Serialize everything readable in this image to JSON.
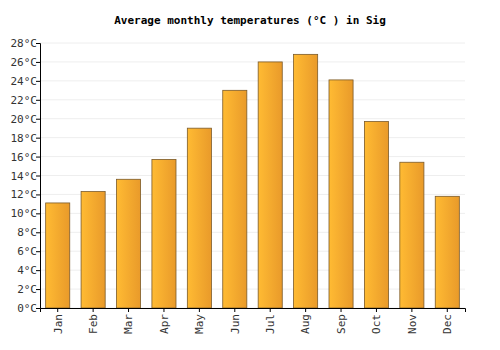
{
  "chart_data": {
    "type": "bar",
    "title": "Average monthly temperatures (°C ) in Sig",
    "categories": [
      "Jan",
      "Feb",
      "Mar",
      "Apr",
      "May",
      "Jun",
      "Jul",
      "Aug",
      "Sep",
      "Oct",
      "Nov",
      "Dec"
    ],
    "values": [
      11.1,
      12.3,
      13.6,
      15.7,
      19.0,
      23.0,
      26.0,
      26.8,
      24.1,
      19.7,
      15.4,
      11.8
    ],
    "color": "#ffa82e",
    "ylim": [
      0,
      28
    ],
    "yticks": [
      {
        "value": 0,
        "label": "0°C"
      },
      {
        "value": 2,
        "label": "2°C"
      },
      {
        "value": 4,
        "label": "4°C"
      },
      {
        "value": 6,
        "label": "6°C"
      },
      {
        "value": 8,
        "label": "8°C"
      },
      {
        "value": 10,
        "label": "10°C"
      },
      {
        "value": 12,
        "label": "12°C"
      },
      {
        "value": 14,
        "label": "14°C"
      },
      {
        "value": 16,
        "label": "16°C"
      },
      {
        "value": 18,
        "label": "18°C"
      },
      {
        "value": 20,
        "label": "20°C"
      },
      {
        "value": 22,
        "label": "22°C"
      },
      {
        "value": 24,
        "label": "24°C"
      },
      {
        "value": 26,
        "label": "26°C"
      },
      {
        "value": 28,
        "label": "28°C"
      }
    ],
    "grid": true
  }
}
